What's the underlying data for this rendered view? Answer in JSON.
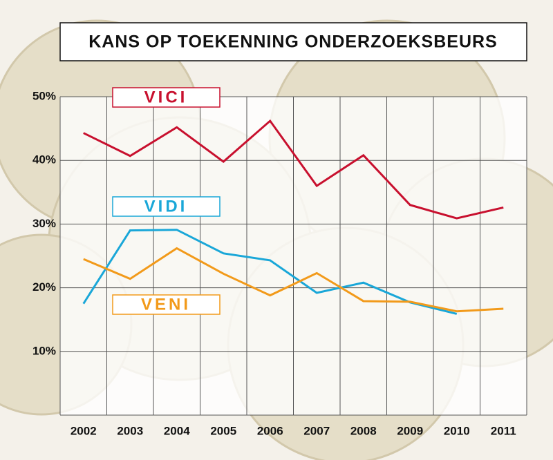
{
  "chart_data": {
    "type": "line",
    "title": "KANS OP TOEKENNING ONDERZOEKSBEURS",
    "categories": [
      "2002",
      "2003",
      "2004",
      "2005",
      "2006",
      "2007",
      "2008",
      "2009",
      "2010",
      "2011"
    ],
    "series": [
      {
        "name": "VICI",
        "color": "#c8102e",
        "values": [
          44.3,
          40.7,
          45.2,
          39.8,
          46.2,
          36.0,
          40.8,
          33.0,
          30.9,
          32.6
        ]
      },
      {
        "name": "VIDI",
        "color": "#1aa7d8",
        "values": [
          17.5,
          29.0,
          29.1,
          25.4,
          24.3,
          19.2,
          20.8,
          17.7,
          15.9,
          null
        ]
      },
      {
        "name": "VENI",
        "color": "#f29a1a",
        "values": [
          24.5,
          21.4,
          26.2,
          22.2,
          18.8,
          22.3,
          17.9,
          17.8,
          16.3,
          16.7
        ]
      }
    ],
    "ylim": [
      0,
      50
    ],
    "yticks": [
      {
        "value": 10,
        "label": "10%"
      },
      {
        "value": 20,
        "label": "20%"
      },
      {
        "value": 30,
        "label": "30%"
      },
      {
        "value": 40,
        "label": "40%"
      },
      {
        "value": 50,
        "label": "50%"
      }
    ],
    "grid": true
  }
}
